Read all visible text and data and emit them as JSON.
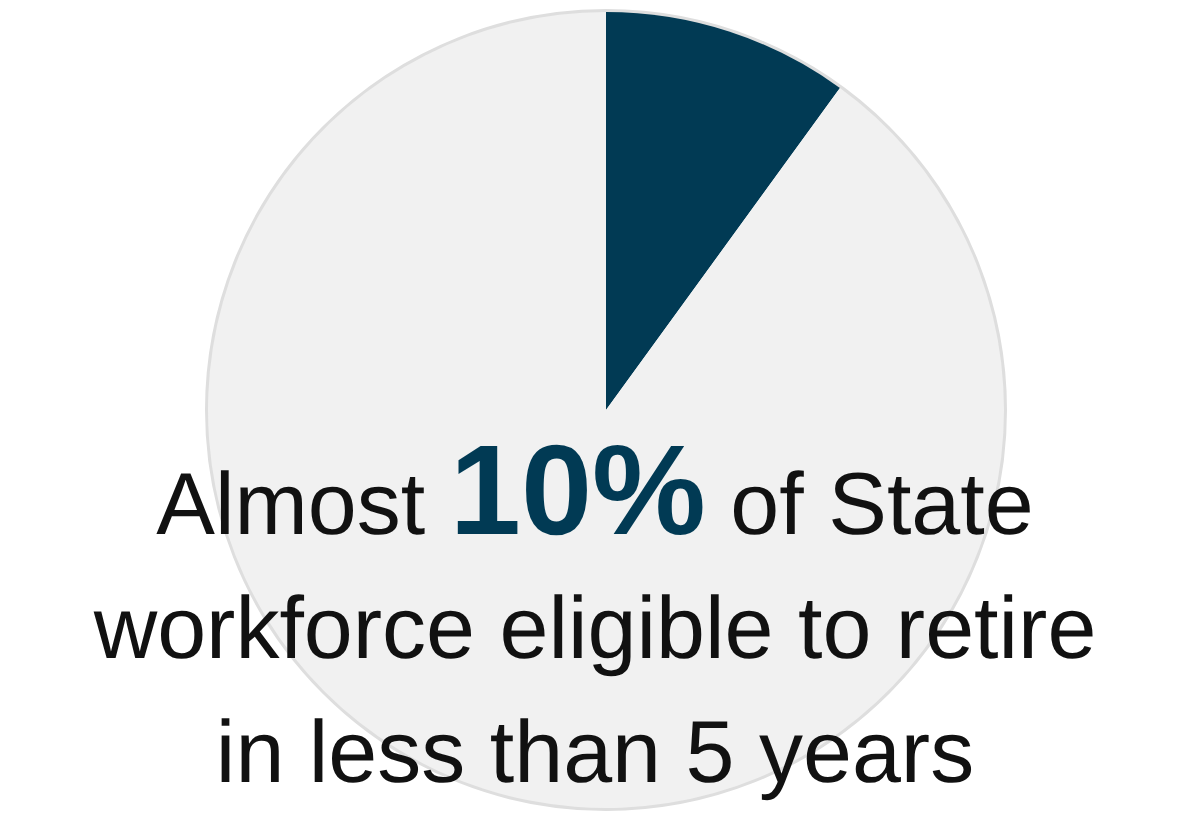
{
  "chart_data": {
    "type": "pie",
    "title": "Almost 10% of State workforce eligible to retire in less than 5 years",
    "categories": [
      null,
      null
    ],
    "values": [
      10,
      90
    ],
    "colors": [
      "#013a54",
      "#f1f1f1"
    ]
  }
}
